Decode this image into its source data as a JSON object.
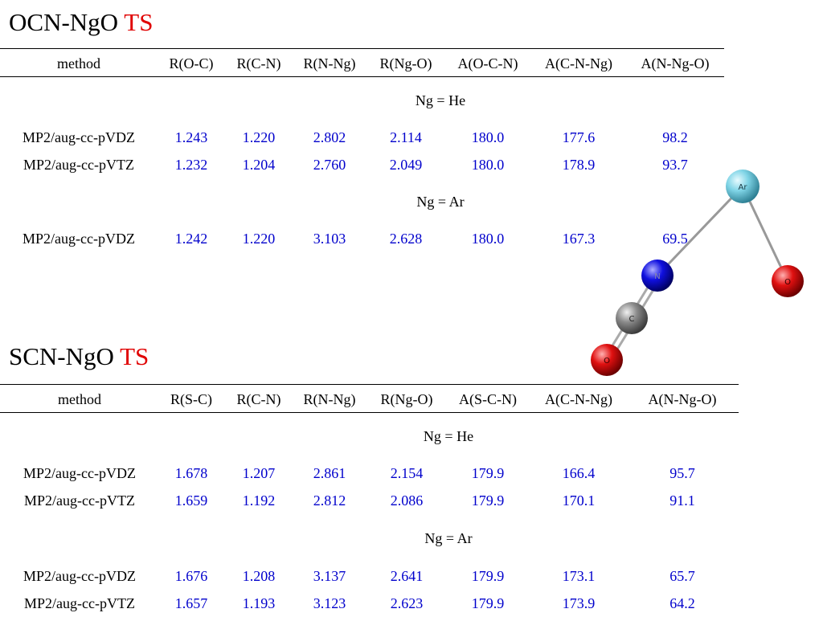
{
  "tables": [
    {
      "title": "OCN-NgO",
      "title_accent": "TS",
      "headers": [
        "method",
        "R(O-C)",
        "R(C-N)",
        "R(N-Ng)",
        "R(Ng-O)",
        "A(O-C-N)",
        "A(C-N-Ng)",
        "A(N-Ng-O)"
      ],
      "groups": [
        {
          "label": "Ng = He",
          "rows": [
            [
              "MP2/aug-cc-pVDZ",
              "1.243",
              "1.220",
              "2.802",
              "2.114",
              "180.0",
              "177.6",
              "98.2"
            ],
            [
              "MP2/aug-cc-pVTZ",
              "1.232",
              "1.204",
              "2.760",
              "2.049",
              "180.0",
              "178.9",
              "93.7"
            ]
          ]
        },
        {
          "label": "Ng = Ar",
          "rows": [
            [
              "MP2/aug-cc-pVDZ",
              "1.242",
              "1.220",
              "3.103",
              "2.628",
              "180.0",
              "167.3",
              "69.5"
            ]
          ]
        }
      ]
    },
    {
      "title": "SCN-NgO",
      "title_accent": "TS",
      "headers": [
        "method",
        "R(S-C)",
        "R(C-N)",
        "R(N-Ng)",
        "R(Ng-O)",
        "A(S-C-N)",
        "A(C-N-Ng)",
        "A(N-Ng-O)"
      ],
      "groups": [
        {
          "label": "Ng = He",
          "rows": [
            [
              "MP2/aug-cc-pVDZ",
              "1.678",
              "1.207",
              "2.861",
              "2.154",
              "179.9",
              "166.4",
              "95.7"
            ],
            [
              "MP2/aug-cc-pVTZ",
              "1.659",
              "1.192",
              "2.812",
              "2.086",
              "179.9",
              "170.1",
              "91.1"
            ]
          ]
        },
        {
          "label": "Ng = Ar",
          "rows": [
            [
              "MP2/aug-cc-pVDZ",
              "1.676",
              "1.208",
              "3.137",
              "2.641",
              "179.9",
              "173.1",
              "65.7"
            ],
            [
              "MP2/aug-cc-pVTZ",
              "1.657",
              "1.193",
              "3.123",
              "2.623",
              "179.9",
              "173.9",
              "64.2"
            ]
          ]
        }
      ]
    }
  ],
  "molecule": {
    "atoms": [
      "Ar",
      "O",
      "N",
      "C",
      "O"
    ],
    "colors": {
      "Ar": "#7fd4e6",
      "O": "#e01010",
      "N": "#1010e0",
      "C": "#8a8a8a"
    }
  },
  "colors": {
    "value": "#0000cc",
    "accent": "#e00000"
  }
}
